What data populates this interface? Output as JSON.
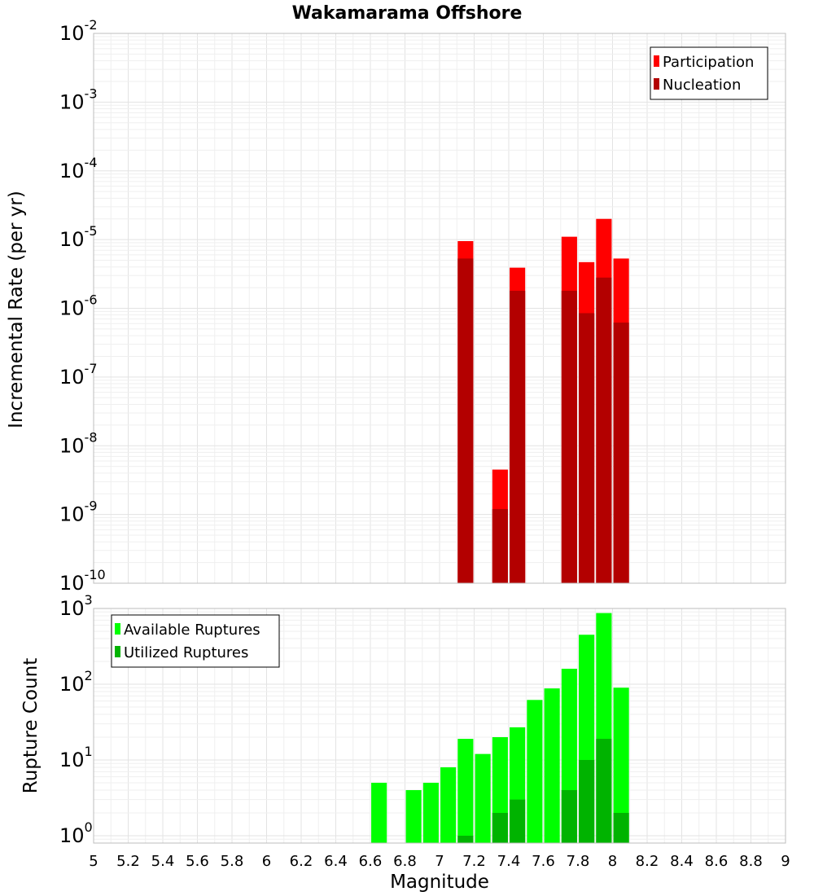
{
  "chart_data": [
    {
      "type": "bar",
      "title": "Wakamarama Offshore",
      "xlabel": "",
      "ylabel": "Incremental Rate (per yr)",
      "yscale": "log",
      "ylim": [
        1e-10,
        0.01
      ],
      "xlim": [
        5,
        9
      ],
      "grid": true,
      "legend_position": "top-right",
      "yticks": [
        {
          "base": "10",
          "exp": "-10"
        },
        {
          "base": "10",
          "exp": "-9"
        },
        {
          "base": "10",
          "exp": "-8"
        },
        {
          "base": "10",
          "exp": "-7"
        },
        {
          "base": "10",
          "exp": "-6"
        },
        {
          "base": "10",
          "exp": "-5"
        },
        {
          "base": "10",
          "exp": "-4"
        },
        {
          "base": "10",
          "exp": "-3"
        },
        {
          "base": "10",
          "exp": "-2"
        }
      ],
      "bar_width": 0.09,
      "series": [
        {
          "name": "Participation",
          "color": "#ff0000",
          "x": [
            7.15,
            7.35,
            7.45,
            7.75,
            7.85,
            7.95,
            8.05
          ],
          "values": [
            9.5e-06,
            4.5e-09,
            3.9e-06,
            1.1e-05,
            4.7e-06,
            2e-05,
            5.3e-06
          ]
        },
        {
          "name": "Nucleation",
          "color": "#b30000",
          "x": [
            7.15,
            7.35,
            7.45,
            7.75,
            7.85,
            7.95,
            8.05
          ],
          "values": [
            5.3e-06,
            1.2e-09,
            1.8e-06,
            1.8e-06,
            8.5e-07,
            2.8e-06,
            6.2e-07
          ]
        }
      ]
    },
    {
      "type": "bar",
      "title": "",
      "xlabel": "Magnitude",
      "ylabel": "Rupture Count",
      "yscale": "log",
      "ylim": [
        0.8,
        1000
      ],
      "xlim": [
        5,
        9
      ],
      "grid": true,
      "legend_position": "top-left",
      "yticks": [
        {
          "base": "10",
          "exp": "0",
          "value": 1
        },
        {
          "base": "10",
          "exp": "1",
          "value": 10
        },
        {
          "base": "10",
          "exp": "2",
          "value": 100
        },
        {
          "base": "10",
          "exp": "3",
          "value": 1000
        }
      ],
      "xticks": [
        "5",
        "5.2",
        "5.4",
        "5.6",
        "5.8",
        "6",
        "6.2",
        "6.4",
        "6.6",
        "6.8",
        "7",
        "7.2",
        "7.4",
        "7.6",
        "7.8",
        "8",
        "8.2",
        "8.4",
        "8.6",
        "8.8",
        "9"
      ],
      "bar_width": 0.09,
      "series": [
        {
          "name": "Available Ruptures",
          "color": "#00ff00",
          "x": [
            6.65,
            6.85,
            6.95,
            7.05,
            7.15,
            7.25,
            7.35,
            7.45,
            7.55,
            7.65,
            7.75,
            7.85,
            7.95,
            8.05
          ],
          "values": [
            5,
            4,
            5,
            8,
            19,
            12,
            20,
            27,
            62,
            88,
            160,
            450,
            870,
            90
          ]
        },
        {
          "name": "Utilized Ruptures",
          "color": "#00b300",
          "x": [
            7.15,
            7.35,
            7.45,
            7.75,
            7.85,
            7.95,
            8.05
          ],
          "values": [
            1,
            2,
            3,
            4,
            10,
            19,
            2
          ]
        }
      ]
    }
  ]
}
